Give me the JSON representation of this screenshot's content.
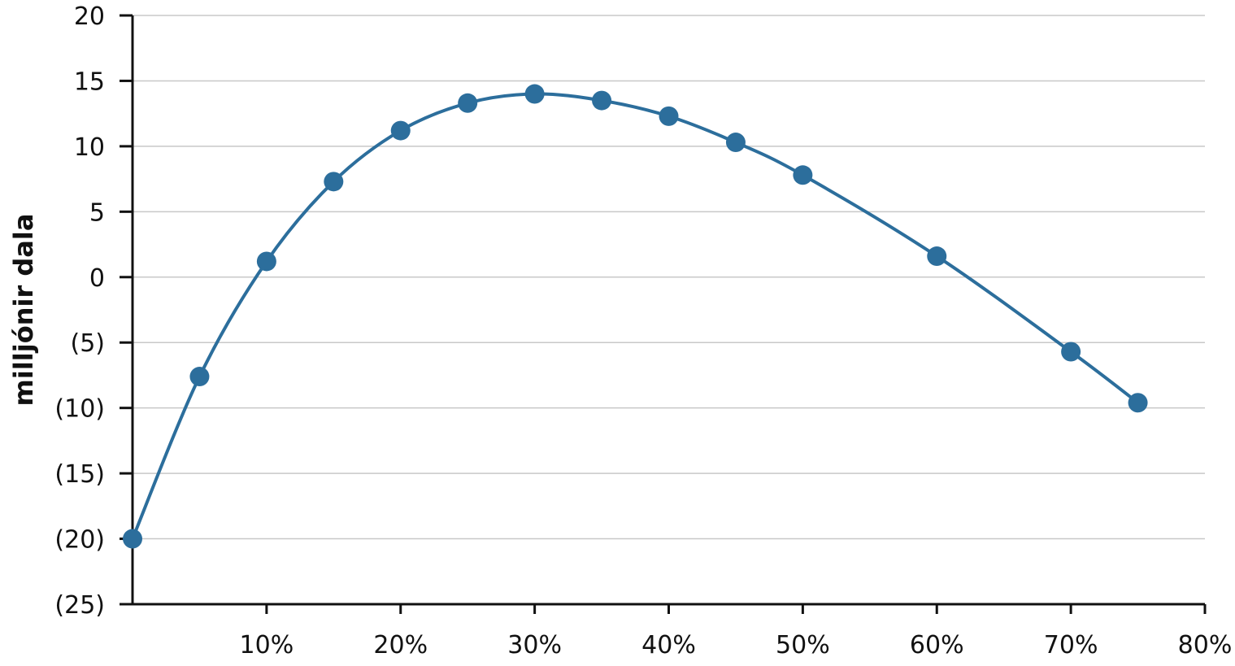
{
  "chart_data": {
    "type": "line",
    "title": "",
    "xlabel": "",
    "ylabel": "milljónir dala",
    "xlim": [
      0,
      80
    ],
    "ylim": [
      -25,
      20
    ],
    "x_ticks": [
      {
        "value": 10,
        "label": "10%"
      },
      {
        "value": 20,
        "label": "20%"
      },
      {
        "value": 30,
        "label": "30%"
      },
      {
        "value": 40,
        "label": "40%"
      },
      {
        "value": 50,
        "label": "50%"
      },
      {
        "value": 60,
        "label": "60%"
      },
      {
        "value": 70,
        "label": "70%"
      },
      {
        "value": 80,
        "label": "80%"
      }
    ],
    "y_ticks": [
      {
        "value": 20,
        "label": "20"
      },
      {
        "value": 15,
        "label": "15"
      },
      {
        "value": 10,
        "label": "10"
      },
      {
        "value": 5,
        "label": "5"
      },
      {
        "value": 0,
        "label": "0"
      },
      {
        "value": -5,
        "label": "(5)"
      },
      {
        "value": -10,
        "label": "(10)"
      },
      {
        "value": -15,
        "label": "(15)"
      },
      {
        "value": -20,
        "label": "(20)"
      },
      {
        "value": -25,
        "label": "(25)"
      }
    ],
    "grid": "horizontal",
    "legend": "none",
    "smooth": true,
    "markers": true,
    "series": [
      {
        "color": "#2c6e9c",
        "points": [
          {
            "x": 0,
            "y": -20.0
          },
          {
            "x": 5,
            "y": -7.6
          },
          {
            "x": 10,
            "y": 1.2
          },
          {
            "x": 15,
            "y": 7.3
          },
          {
            "x": 20,
            "y": 11.2
          },
          {
            "x": 25,
            "y": 13.3
          },
          {
            "x": 30,
            "y": 14.0
          },
          {
            "x": 35,
            "y": 13.5
          },
          {
            "x": 40,
            "y": 12.3
          },
          {
            "x": 45,
            "y": 10.3
          },
          {
            "x": 50,
            "y": 7.8
          },
          {
            "x": 60,
            "y": 1.6
          },
          {
            "x": 70,
            "y": -5.7
          },
          {
            "x": 75,
            "y": -9.6
          }
        ]
      }
    ],
    "colors": {
      "axis": "#111111",
      "grid": "#c8c8c8",
      "series": "#2c6e9c"
    }
  }
}
